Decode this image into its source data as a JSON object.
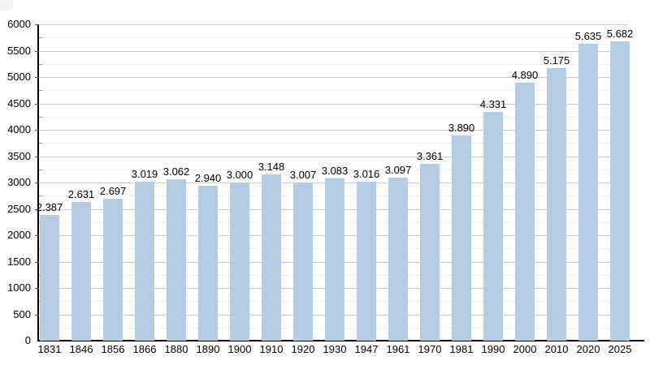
{
  "chart_data": {
    "type": "bar",
    "title": "",
    "xlabel": "",
    "ylabel": "",
    "categories": [
      "1831",
      "1846",
      "1856",
      "1866",
      "1880",
      "1890",
      "1900",
      "1910",
      "1920",
      "1930",
      "1947",
      "1961",
      "1970",
      "1981",
      "1990",
      "2000",
      "2010",
      "2020",
      "2025"
    ],
    "values": [
      2387,
      2631,
      2697,
      3019,
      3062,
      2940,
      3000,
      3148,
      3007,
      3083,
      3016,
      3097,
      3361,
      3890,
      4331,
      4890,
      5175,
      5635,
      5682
    ],
    "labels": [
      "2.387",
      "2.631",
      "2.697",
      "3.019",
      "3.062",
      "2.940",
      "3.000",
      "3.148",
      "3.007",
      "3.083",
      "3.016",
      "3.097",
      "3.361",
      "3.890",
      "4.331",
      "4.890",
      "5.175",
      "5.635",
      "5.682"
    ],
    "ylim": [
      0,
      6000
    ],
    "y_major_step": 500,
    "y_minor_step": 250,
    "y_tick_labels": [
      "0",
      "500",
      "1000",
      "1500",
      "2000",
      "2500",
      "3000",
      "3500",
      "4000",
      "4500",
      "5000",
      "5500",
      "6000"
    ],
    "grid": true,
    "legend": "none",
    "colors": {
      "bar_fill": "#b4cce4",
      "grid_major": "#c9c9c9",
      "grid_minor": "#ececec",
      "axis": "#000000",
      "text": "#000000",
      "background": "#ffffff"
    }
  }
}
